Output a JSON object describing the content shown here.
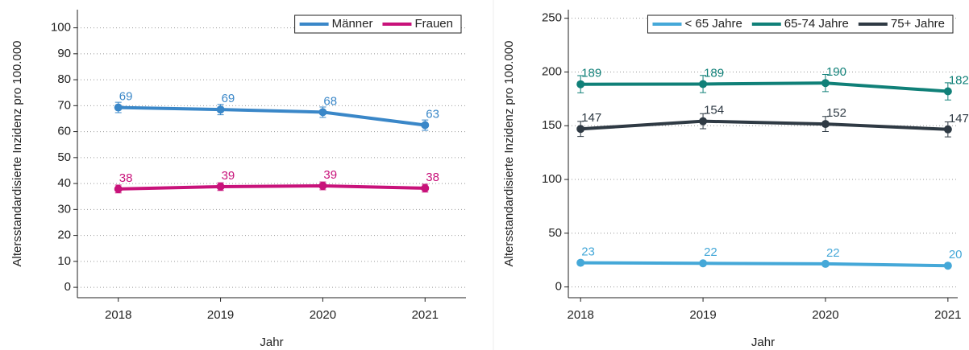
{
  "chart_data": [
    {
      "type": "line",
      "x": [
        2018,
        2019,
        2020,
        2021
      ],
      "xlim": [
        2017.6,
        2021.4
      ],
      "xticks": [
        2018,
        2019,
        2020,
        2021
      ],
      "ylim": [
        -4,
        107
      ],
      "yticks": [
        0,
        10,
        20,
        30,
        40,
        50,
        60,
        70,
        80,
        90,
        100
      ],
      "grid": true,
      "legend": "top-right",
      "x_label": "Jahr",
      "y_label": "Altersstandardisierte Inzidenz pro 100.000",
      "series": [
        {
          "name": "Männer",
          "color": "#3a87c8",
          "values": [
            69.3,
            68.5,
            67.5,
            62.5
          ],
          "value_labels": [
            "69",
            "69",
            "68",
            "63"
          ],
          "errors": [
            2,
            2,
            2,
            2
          ]
        },
        {
          "name": "Frauen",
          "color": "#c8127a",
          "values": [
            37.9,
            38.8,
            39.1,
            38.2
          ],
          "value_labels": [
            "38",
            "39",
            "39",
            "38"
          ],
          "errors": [
            1.5,
            1.5,
            1.5,
            1.5
          ]
        }
      ]
    },
    {
      "type": "line",
      "x": [
        2018,
        2019,
        2020,
        2021
      ],
      "xlim": [
        2017.9,
        2021.08
      ],
      "xticks": [
        2018,
        2019,
        2020,
        2021
      ],
      "ylim": [
        -10,
        258
      ],
      "yticks": [
        0,
        50,
        100,
        150,
        200,
        250
      ],
      "grid": true,
      "legend": "top-right",
      "x_label": "Jahr",
      "y_label": "Altersstandardisierte Inzidenz pro 100.000",
      "series": [
        {
          "name": "< 65 Jahre",
          "color": "#45a8d8",
          "values": [
            22.5,
            22,
            21.5,
            19.8
          ],
          "value_labels": [
            "23",
            "22",
            "22",
            "20"
          ],
          "errors": [
            1.5,
            1.5,
            1.5,
            1.5
          ]
        },
        {
          "name": "65-74 Jahre",
          "color": "#108078",
          "values": [
            188.6,
            188.8,
            189.7,
            182
          ],
          "value_labels": [
            "189",
            "189",
            "190",
            "182"
          ],
          "errors": [
            8,
            8,
            8,
            8
          ]
        },
        {
          "name": "75+ Jahre",
          "color": "#2f3a44",
          "values": [
            147,
            154.2,
            151.6,
            146.6
          ],
          "value_labels": [
            "147",
            "154",
            "152",
            "147"
          ],
          "errors": [
            7,
            7,
            7,
            7
          ]
        }
      ]
    }
  ]
}
